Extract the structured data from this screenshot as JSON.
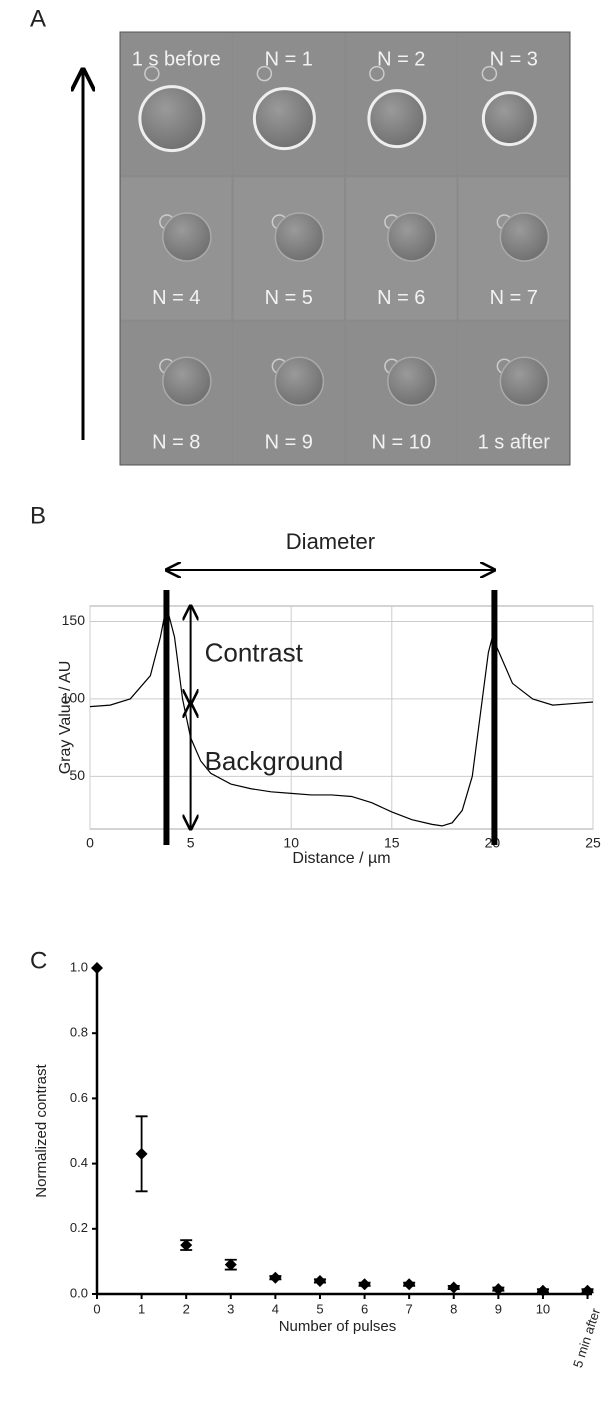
{
  "panel_labels": [
    "A",
    "B",
    "C"
  ],
  "image_grid": {
    "cells": [
      "1 s before",
      "N = 1",
      "N = 2",
      "N = 3",
      "N = 4",
      "N = 5",
      "N = 6",
      "N = 7",
      "N = 8",
      "N = 9",
      "N = 10",
      "1 s after"
    ]
  },
  "chart_data": [
    {
      "type": "line",
      "xlabel": "Distance / µm",
      "ylabel": "Gray Value / AU",
      "annotations": [
        "Diameter",
        "Contrast",
        "Background"
      ],
      "x": [
        0,
        1,
        2,
        3,
        3.5,
        3.8,
        4.2,
        4.6,
        5,
        5.5,
        6,
        7,
        8,
        9,
        10,
        11,
        12,
        13,
        14,
        15,
        16,
        17,
        17.5,
        18,
        18.5,
        19,
        19.5,
        19.8,
        20,
        20.5,
        21,
        22,
        23,
        24,
        25
      ],
      "values": [
        95,
        96,
        100,
        115,
        140,
        160,
        140,
        100,
        75,
        60,
        52,
        45,
        42,
        40,
        39,
        38,
        38,
        37,
        33,
        27,
        22,
        19,
        18,
        20,
        28,
        50,
        100,
        130,
        140,
        125,
        110,
        100,
        96,
        97,
        98
      ],
      "vlines": [
        3.8,
        20.1
      ],
      "background_level": 97,
      "color": "#000000",
      "xlim": [
        0,
        25
      ],
      "ylim": [
        16,
        160
      ],
      "xticks": [
        0,
        5,
        10,
        15,
        20,
        25
      ],
      "yticks": [
        50,
        100,
        150
      ],
      "grid": true
    },
    {
      "type": "scatter",
      "xlabel": "Number of pulses",
      "ylabel": "Normalized contrast",
      "x": [
        0,
        1,
        2,
        3,
        4,
        5,
        6,
        7,
        8,
        9,
        10,
        11
      ],
      "values": [
        1.0,
        0.43,
        0.15,
        0.09,
        0.05,
        0.04,
        0.03,
        0.03,
        0.02,
        0.015,
        0.01,
        0.01
      ],
      "errors": [
        0,
        0.115,
        0.015,
        0.015,
        0.005,
        0.005,
        0.005,
        0.005,
        0.005,
        0.005,
        0.005,
        0.005
      ],
      "color": "#000000",
      "xlim": [
        0,
        11.1
      ],
      "ylim": [
        0,
        1
      ],
      "xticks": [
        0,
        1,
        2,
        3,
        4,
        5,
        6,
        7,
        8,
        9,
        10,
        {
          "value": 11,
          "label": "5 min after"
        }
      ],
      "yticks": [
        {
          "value": 0,
          "label": "0.0"
        },
        {
          "value": 0.2,
          "label": "0.2"
        },
        {
          "value": 0.4,
          "label": "0.4"
        },
        {
          "value": 0.6,
          "label": "0.6"
        },
        {
          "value": 0.8,
          "label": "0.8"
        },
        {
          "value": 1,
          "label": "1.0"
        }
      ],
      "grid": false
    }
  ]
}
